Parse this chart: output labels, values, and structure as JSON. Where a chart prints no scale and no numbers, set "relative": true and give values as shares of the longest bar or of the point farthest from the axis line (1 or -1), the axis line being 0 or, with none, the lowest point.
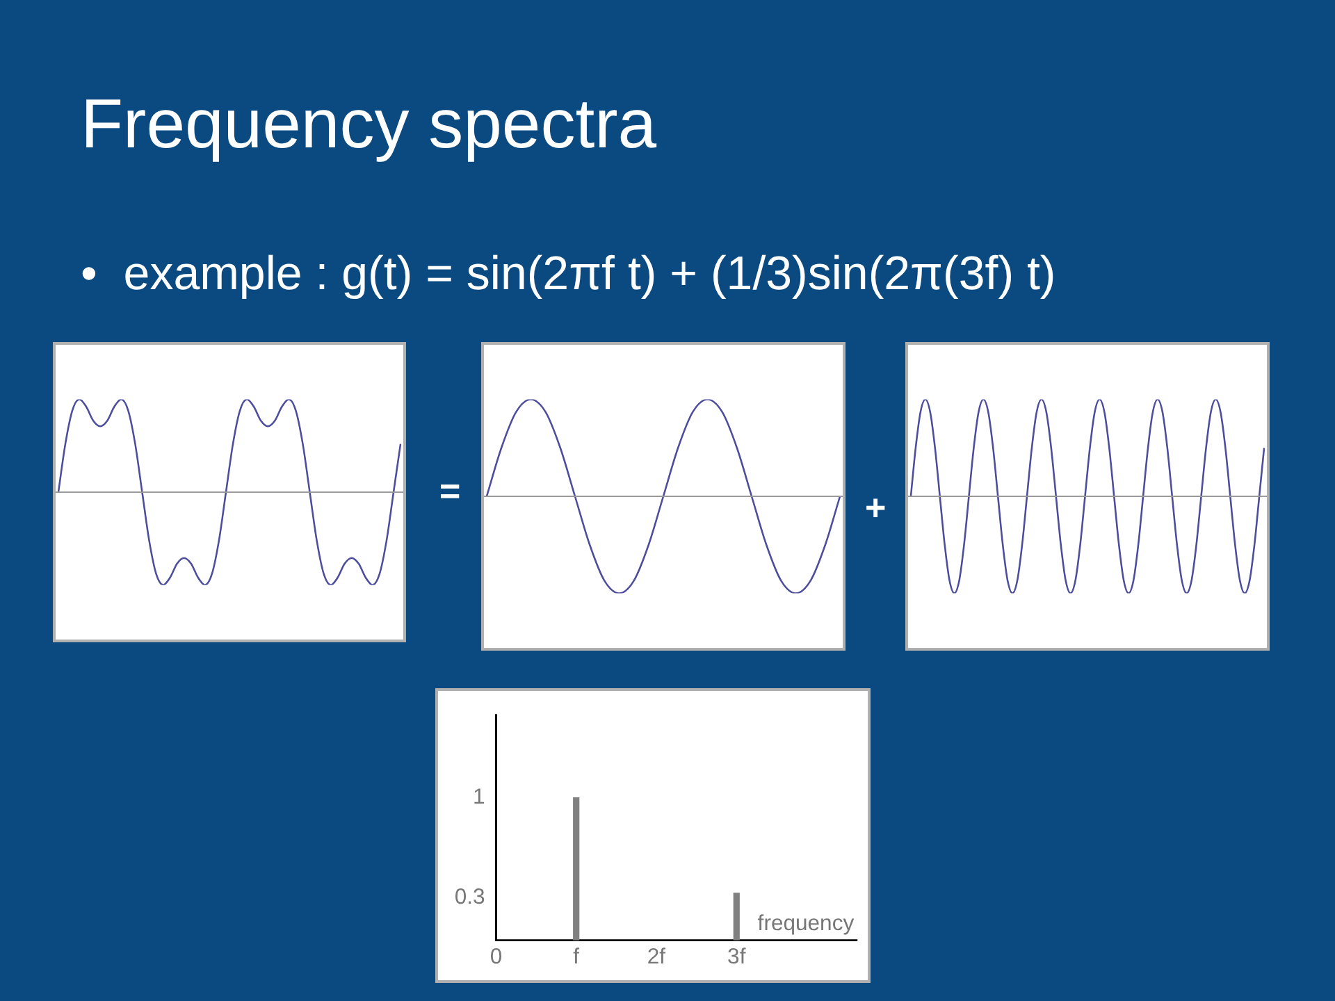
{
  "chart_data": [
    {
      "type": "line",
      "title": "Frequency spectra",
      "subtitle": "•  example : g(t) = sin(2πf t) + (1/3)sin(2π(3f) t)",
      "relative": true,
      "color": "#4d4d9e",
      "annotations": [
        "="
      ],
      "categories": [
        null,
        null,
        null,
        null,
        null,
        null,
        null,
        null,
        null,
        null,
        null,
        null,
        null,
        null,
        null,
        null,
        null,
        null,
        null,
        null,
        null,
        null,
        null,
        null,
        null,
        null,
        null,
        null,
        null,
        null,
        null,
        null,
        null,
        null,
        null,
        null,
        null,
        null,
        null,
        null,
        null,
        null,
        null,
        null,
        null,
        null,
        null,
        null,
        null,
        null
      ],
      "values": [
        0,
        0.52,
        0.88,
        1,
        0.92,
        0.77,
        0.71,
        0.77,
        0.92,
        1,
        0.88,
        0.52,
        0,
        -0.52,
        -0.88,
        -1,
        -0.92,
        -0.77,
        -0.71,
        -0.77,
        -0.92,
        -1,
        -0.88,
        -0.52,
        0,
        0.52,
        0.88,
        1,
        0.92,
        0.77,
        0.71,
        0.77,
        0.92,
        1,
        0.88,
        0.52,
        0,
        -0.52,
        -0.88,
        -1,
        -0.92,
        -0.77,
        -0.71,
        -0.77,
        -0.92,
        -1,
        -0.88,
        -0.52,
        0,
        0.52
      ]
    },
    {
      "type": "line",
      "relative": true,
      "color": "#4d4d9e",
      "annotations": [
        "+"
      ],
      "categories": [
        null,
        null,
        null,
        null,
        null,
        null,
        null,
        null,
        null,
        null,
        null,
        null,
        null,
        null,
        null,
        null,
        null,
        null,
        null,
        null,
        null,
        null,
        null,
        null,
        null
      ],
      "values": [
        0,
        0.5,
        0.87,
        1,
        0.87,
        0.5,
        0,
        -0.5,
        -0.87,
        -1,
        -0.87,
        -0.5,
        0,
        0.5,
        0.87,
        1,
        0.87,
        0.5,
        0,
        -0.5,
        -0.87,
        -1,
        -0.87,
        -0.5,
        0
      ]
    },
    {
      "type": "line",
      "relative": true,
      "color": "#4d4d9e",
      "categories": [
        null,
        null,
        null,
        null,
        null,
        null,
        null,
        null,
        null,
        null,
        null,
        null,
        null,
        null,
        null,
        null,
        null,
        null,
        null,
        null,
        null,
        null,
        null,
        null,
        null,
        null,
        null,
        null,
        null,
        null,
        null,
        null,
        null,
        null,
        null,
        null,
        null,
        null,
        null,
        null,
        null,
        null,
        null,
        null,
        null,
        null,
        null,
        null,
        null,
        null,
        null,
        null,
        null,
        null,
        null,
        null,
        null,
        null,
        null,
        null,
        null,
        null,
        null,
        null,
        null,
        null,
        null,
        null,
        null,
        null,
        null,
        null,
        null,
        null
      ],
      "values": [
        0,
        0.5,
        0.87,
        1,
        0.87,
        0.5,
        0,
        -0.5,
        -0.87,
        -1,
        -0.87,
        -0.5,
        0,
        0.5,
        0.87,
        1,
        0.87,
        0.5,
        0,
        -0.5,
        -0.87,
        -1,
        -0.87,
        -0.5,
        0,
        0.5,
        0.87,
        1,
        0.87,
        0.5,
        0,
        -0.5,
        -0.87,
        -1,
        -0.87,
        -0.5,
        0,
        0.5,
        0.87,
        1,
        0.87,
        0.5,
        0,
        -0.5,
        -0.87,
        -1,
        -0.87,
        -0.5,
        0,
        0.5,
        0.87,
        1,
        0.87,
        0.5,
        0,
        -0.5,
        -0.87,
        -1,
        -0.87,
        -0.5,
        0,
        0.5,
        0.87,
        1,
        0.87,
        0.5,
        0,
        -0.5,
        -0.87,
        -1,
        -0.87,
        -0.5,
        0,
        0.5
      ]
    },
    {
      "type": "bar",
      "x": [
        1,
        3
      ],
      "values": [
        1,
        0.33
      ],
      "color": "#808080",
      "xlabel": "frequency",
      "grid": false,
      "xlim": [
        0,
        4.5
      ],
      "xticks": [
        {
          "value": 0,
          "label": "0"
        },
        {
          "value": 1,
          "label": "f"
        },
        {
          "value": 2,
          "label": "2f"
        },
        {
          "value": 3,
          "label": "3f"
        }
      ],
      "ylim": [
        0,
        1.58
      ],
      "yticks": [
        0.3,
        1
      ]
    }
  ]
}
